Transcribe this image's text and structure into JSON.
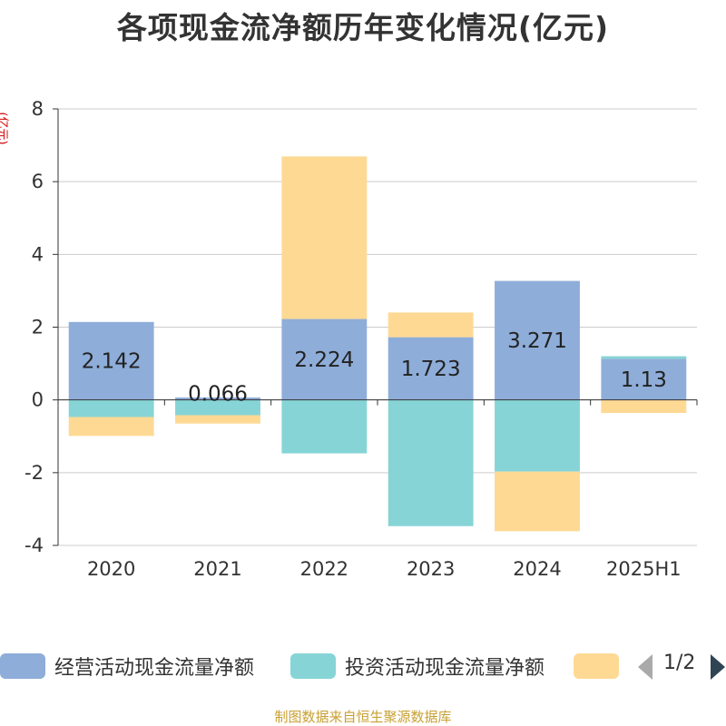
{
  "title": "各项现金流净额历年变化情况(亿元)",
  "unit": "(亿元)",
  "footer": "制图数据来自恒生聚源数据库",
  "pager": "1/2",
  "chart_data": {
    "type": "bar",
    "stacked": true,
    "categories": [
      "2020",
      "2021",
      "2022",
      "2023",
      "2024",
      "2025H1"
    ],
    "ylim": [
      -4,
      8
    ],
    "yticks": [
      -4,
      -2,
      0,
      2,
      4,
      6,
      8
    ],
    "grid": true,
    "legend_position": "bottom",
    "series": [
      {
        "name": "经营活动现金流量净额",
        "color": "#8eadd9",
        "values": [
          2.142,
          0.066,
          2.224,
          1.723,
          3.271,
          1.13
        ],
        "labels": [
          "2.142",
          "0.066",
          "2.224",
          "1.723",
          "3.271",
          "1.13"
        ]
      },
      {
        "name": "投资活动现金流量净额",
        "color": "#86d4d6",
        "values": [
          -0.47,
          -0.42,
          -1.47,
          -3.47,
          -1.97,
          0.07
        ]
      },
      {
        "name": "",
        "color": "#fed994",
        "values": [
          -0.52,
          -0.23,
          4.47,
          0.68,
          -1.64,
          -0.36
        ]
      }
    ]
  }
}
